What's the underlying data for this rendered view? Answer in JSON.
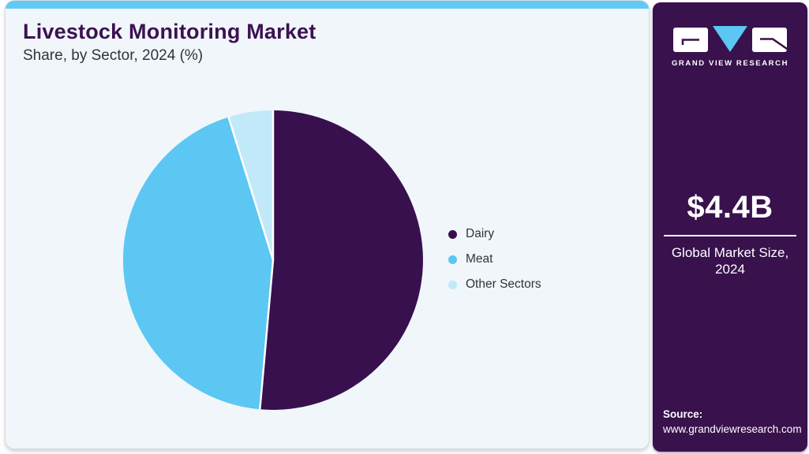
{
  "header": {
    "title": "Livestock Monitoring Market",
    "subtitle": "Share, by Sector, 2024 (%)"
  },
  "chart_data": {
    "type": "pie",
    "title": "Livestock Monitoring Market Share, by Sector, 2024 (%)",
    "categories": [
      "Dairy",
      "Meat",
      "Other Sectors"
    ],
    "values": [
      51.4,
      43.8,
      4.8
    ],
    "unit": "%",
    "colors": [
      "#38104e",
      "#5bc7f2",
      "#c2e9fa"
    ],
    "start_angle_deg": 0,
    "direction": "clockwise",
    "legend_position": "right",
    "slice_separator_color": "#ffffff"
  },
  "sidebar": {
    "logo_text": "GRAND VIEW RESEARCH",
    "market_size_value": "$4.4B",
    "market_size_label": "Global Market Size, 2024",
    "source_label": "Source:",
    "source_url": "www.grandviewresearch.com"
  },
  "colors": {
    "accent_bar": "#62c9f2",
    "card_bg": "#f0f6fa",
    "panel_bg": "#38114d",
    "title_text": "#3d1152",
    "body_text": "#33333d"
  }
}
